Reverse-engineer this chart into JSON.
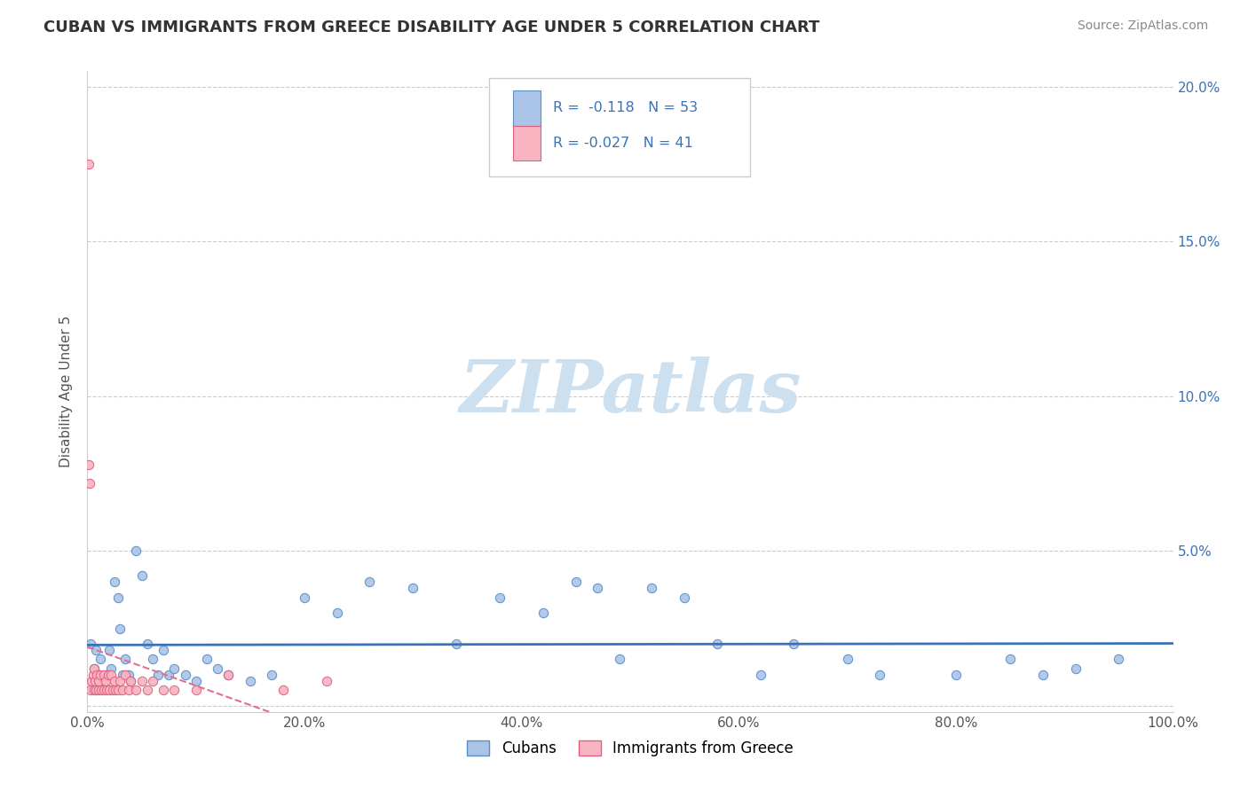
{
  "title": "CUBAN VS IMMIGRANTS FROM GREECE DISABILITY AGE UNDER 5 CORRELATION CHART",
  "source": "Source: ZipAtlas.com",
  "ylabel": "Disability Age Under 5",
  "legend_cubans": "Cubans",
  "legend_greece": "Immigrants from Greece",
  "r_cubans": -0.118,
  "n_cubans": 53,
  "r_greece": -0.027,
  "n_greece": 41,
  "xlim": [
    0,
    1.0
  ],
  "ylim": [
    -0.002,
    0.205
  ],
  "xtick_labels": [
    "0.0%",
    "20.0%",
    "40.0%",
    "60.0%",
    "80.0%",
    "100.0%"
  ],
  "xtick_vals": [
    0.0,
    0.2,
    0.4,
    0.6,
    0.8,
    1.0
  ],
  "ytick_vals": [
    0.0,
    0.05,
    0.1,
    0.15,
    0.2
  ],
  "right_ytick_labels": [
    "",
    "5.0%",
    "10.0%",
    "15.0%",
    "20.0%"
  ],
  "color_cubans_face": "#aac4e8",
  "color_cubans_edge": "#5b8ec4",
  "color_greece_face": "#f8b4c0",
  "color_greece_edge": "#e06080",
  "color_cubans_line": "#3a72b8",
  "color_greece_line": "#e07090",
  "watermark_color": "#cce0f0",
  "background": "#ffffff",
  "grid_color": "#cccccc",
  "title_color": "#333333",
  "source_color": "#888888",
  "ylabel_color": "#555555",
  "tick_color": "#3a72b8",
  "cubans_x": [
    0.003,
    0.006,
    0.008,
    0.01,
    0.012,
    0.015,
    0.018,
    0.02,
    0.022,
    0.025,
    0.028,
    0.03,
    0.032,
    0.035,
    0.038,
    0.04,
    0.045,
    0.05,
    0.055,
    0.06,
    0.065,
    0.07,
    0.075,
    0.08,
    0.09,
    0.1,
    0.11,
    0.12,
    0.13,
    0.15,
    0.17,
    0.2,
    0.23,
    0.26,
    0.3,
    0.34,
    0.38,
    0.42,
    0.45,
    0.47,
    0.49,
    0.52,
    0.55,
    0.58,
    0.62,
    0.65,
    0.7,
    0.73,
    0.8,
    0.85,
    0.88,
    0.91,
    0.95
  ],
  "cubans_y": [
    0.02,
    0.012,
    0.018,
    0.01,
    0.015,
    0.008,
    0.01,
    0.018,
    0.012,
    0.04,
    0.035,
    0.025,
    0.01,
    0.015,
    0.01,
    0.008,
    0.05,
    0.042,
    0.02,
    0.015,
    0.01,
    0.018,
    0.01,
    0.012,
    0.01,
    0.008,
    0.015,
    0.012,
    0.01,
    0.008,
    0.01,
    0.035,
    0.03,
    0.04,
    0.038,
    0.02,
    0.035,
    0.03,
    0.04,
    0.038,
    0.015,
    0.038,
    0.035,
    0.02,
    0.01,
    0.02,
    0.015,
    0.01,
    0.01,
    0.015,
    0.01,
    0.012,
    0.015
  ],
  "greece_x": [
    0.001,
    0.001,
    0.002,
    0.003,
    0.004,
    0.005,
    0.006,
    0.006,
    0.007,
    0.008,
    0.009,
    0.01,
    0.01,
    0.012,
    0.013,
    0.015,
    0.015,
    0.017,
    0.018,
    0.019,
    0.02,
    0.022,
    0.023,
    0.025,
    0.026,
    0.028,
    0.03,
    0.032,
    0.035,
    0.038,
    0.04,
    0.045,
    0.05,
    0.055,
    0.06,
    0.07,
    0.08,
    0.1,
    0.13,
    0.18,
    0.22
  ],
  "greece_y": [
    0.175,
    0.078,
    0.072,
    0.005,
    0.008,
    0.01,
    0.005,
    0.012,
    0.008,
    0.005,
    0.01,
    0.005,
    0.008,
    0.01,
    0.005,
    0.01,
    0.005,
    0.008,
    0.005,
    0.01,
    0.005,
    0.01,
    0.005,
    0.008,
    0.005,
    0.005,
    0.008,
    0.005,
    0.01,
    0.005,
    0.008,
    0.005,
    0.008,
    0.005,
    0.008,
    0.005,
    0.005,
    0.005,
    0.01,
    0.005,
    0.008
  ]
}
